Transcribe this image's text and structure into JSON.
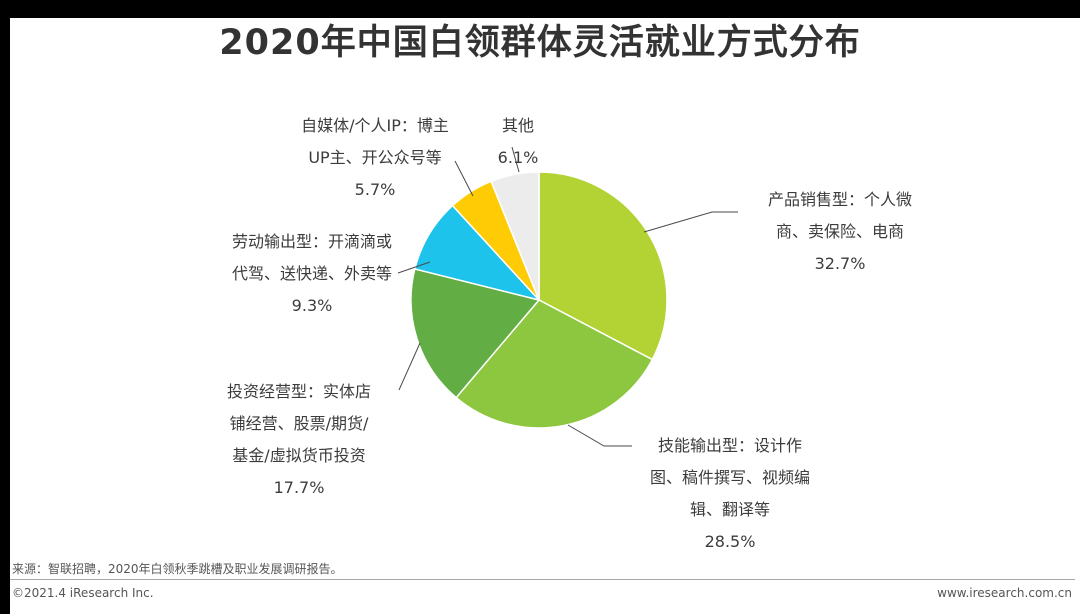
{
  "title": "2020年中国白领群体灵活就业方式分布",
  "chart_data": {
    "type": "pie",
    "slices": [
      {
        "lines": [
          "产品销售型：个人微",
          "商、卖保险、电商"
        ],
        "pct_label": "32.7%",
        "value": 32.7,
        "color": "#b3d334"
      },
      {
        "lines": [
          "技能输出型：设计作",
          "图、稿件撰写、视频编",
          "辑、翻译等"
        ],
        "pct_label": "28.5%",
        "value": 28.5,
        "color": "#8dc63f"
      },
      {
        "lines": [
          "投资经营型：实体店",
          "铺经营、股票/期货/",
          "基金/虚拟货币投资"
        ],
        "pct_label": "17.7%",
        "value": 17.7,
        "color": "#62ae45"
      },
      {
        "lines": [
          "劳动输出型：开滴滴或",
          "代驾、送快递、外卖等"
        ],
        "pct_label": "9.3%",
        "value": 9.3,
        "color": "#1ec3ec"
      },
      {
        "lines": [
          "自媒体/个人IP：博主",
          "UP主、开公众号等"
        ],
        "pct_label": "5.7%",
        "value": 5.7,
        "color": "#ffcb05"
      },
      {
        "lines": [
          "其他"
        ],
        "pct_label": "6.1%",
        "value": 6.1,
        "color": "#ececec"
      }
    ]
  },
  "source": "来源：智联招聘，2020年白领秋季跳槽及职业发展调研报告。",
  "footer": {
    "copyright": "©2021.4 iResearch Inc.",
    "website": "www.iresearch.com.cn"
  }
}
